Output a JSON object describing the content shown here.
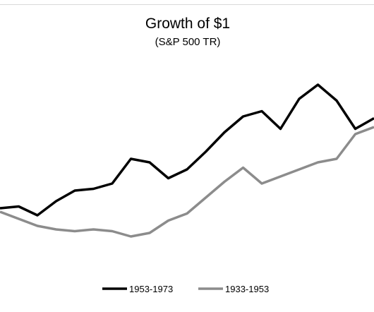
{
  "chart_data": {
    "type": "line",
    "title": "Growth of $1",
    "subtitle": "(S&P 500 TR)",
    "xlabel": "",
    "ylabel": "",
    "x": [
      0,
      1,
      2,
      3,
      4,
      5,
      6,
      7,
      8,
      9,
      10,
      11,
      12,
      13,
      14,
      15,
      16,
      17,
      18,
      19,
      20
    ],
    "ylim": [
      0,
      100
    ],
    "legend_position": "bottom",
    "grid": false,
    "series": [
      {
        "name": "1953-1973",
        "color": "#000000",
        "values": [
          30,
          31,
          26,
          34,
          40,
          41,
          44,
          58,
          56,
          47,
          52,
          62,
          73,
          82,
          85,
          75,
          92,
          100,
          91,
          75,
          81
        ]
      },
      {
        "name": "1933-1953",
        "color": "#8c8c8c",
        "values": [
          28,
          24,
          20,
          18,
          17,
          18,
          17,
          14,
          16,
          23,
          27,
          36,
          45,
          53,
          44,
          48,
          52,
          56,
          58,
          72,
          76
        ]
      }
    ]
  }
}
